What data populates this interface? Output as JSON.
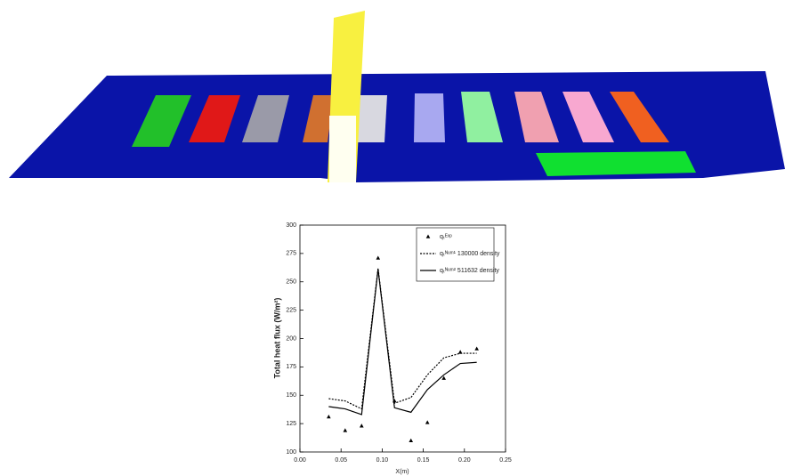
{
  "chart_data": {
    "type": "line",
    "x": [
      0.035,
      0.055,
      0.075,
      0.095,
      0.115,
      0.135,
      0.155,
      0.175,
      0.195,
      0.215
    ],
    "series": [
      {
        "name": "qₜᴱˣᵖ",
        "color": "#000000",
        "marker": "triangle",
        "values": [
          131,
          119,
          123,
          271,
          145,
          110,
          126,
          165,
          188,
          191
        ]
      },
      {
        "name": "qₜᴺᵘᵐ¹ 130000 density",
        "color": "#000000",
        "dash": "dotted",
        "values": [
          147,
          145,
          138,
          262,
          143,
          148,
          168,
          183,
          187,
          187
        ]
      },
      {
        "name": "qₜᴺᵘᵐ² 511632 density",
        "color": "#000000",
        "dash": "solid",
        "values": [
          140,
          138,
          133,
          261,
          139,
          135,
          155,
          168,
          178,
          179
        ]
      }
    ],
    "xlim": [
      0,
      0.25
    ],
    "xticks": [
      {
        "value": 0,
        "label": "0.00"
      },
      {
        "value": 0.05,
        "label": "0.05"
      },
      {
        "value": 0.1,
        "label": "0.10"
      },
      {
        "value": 0.15,
        "label": "0.15"
      },
      {
        "value": 0.2,
        "label": "0.20"
      },
      {
        "value": 0.25,
        "label": "0.25"
      }
    ],
    "ylim": [
      100,
      300
    ],
    "yticks": [
      100,
      125,
      150,
      175,
      200,
      225,
      250,
      275,
      300
    ],
    "xlabel": "X(m)",
    "ylabel": "Total heat flux (W/m²)",
    "legend": "upper right"
  }
}
